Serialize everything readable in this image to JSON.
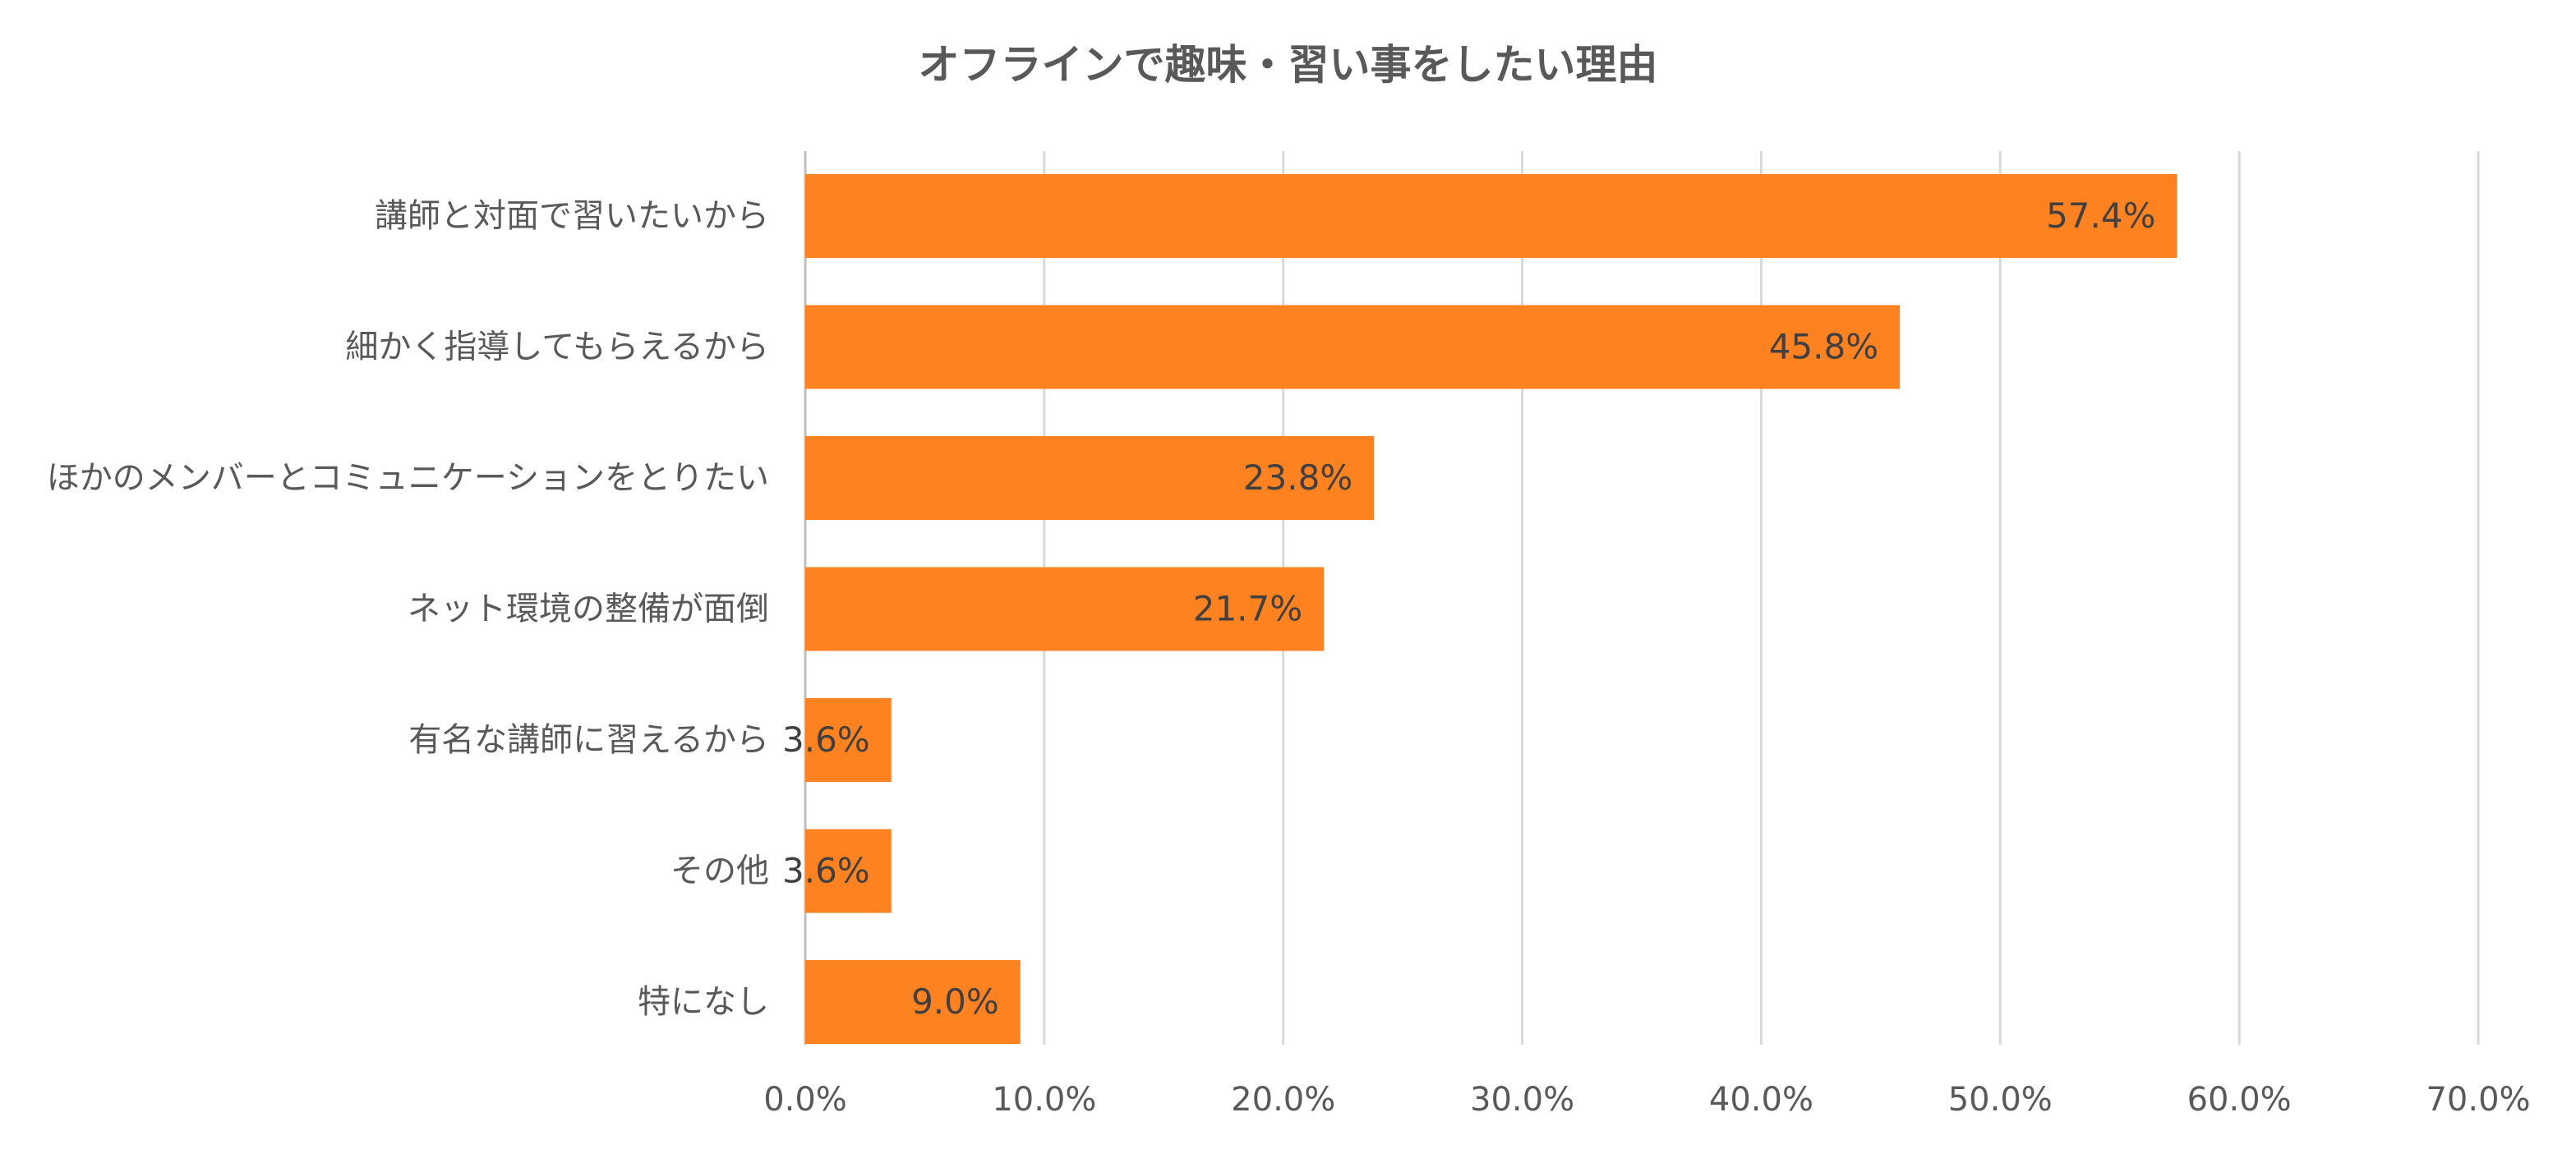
{
  "chart_data": {
    "type": "bar",
    "orientation": "horizontal",
    "title": "オフラインで趣味・習い事をしたい理由",
    "categories": [
      "講師と対面で習いたいから",
      "細かく指導してもらえるから",
      "ほかのメンバーとコミュニケーションをとりたい",
      "ネット環境の整備が面倒",
      "有名な講師に習えるから",
      "その他",
      "特になし"
    ],
    "values": [
      57.4,
      45.8,
      23.8,
      21.7,
      3.6,
      3.6,
      9.0
    ],
    "data_labels": [
      "57.4%",
      "45.8%",
      "23.8%",
      "21.7%",
      "3.6%",
      "3.6%",
      "9.0%"
    ],
    "xlim": [
      0,
      70
    ],
    "x_ticks": [
      "0.0%",
      "10.0%",
      "20.0%",
      "30.0%",
      "40.0%",
      "50.0%",
      "60.0%",
      "70.0%"
    ],
    "grid": true,
    "legend": "none",
    "bar_color": "#FF8221"
  }
}
